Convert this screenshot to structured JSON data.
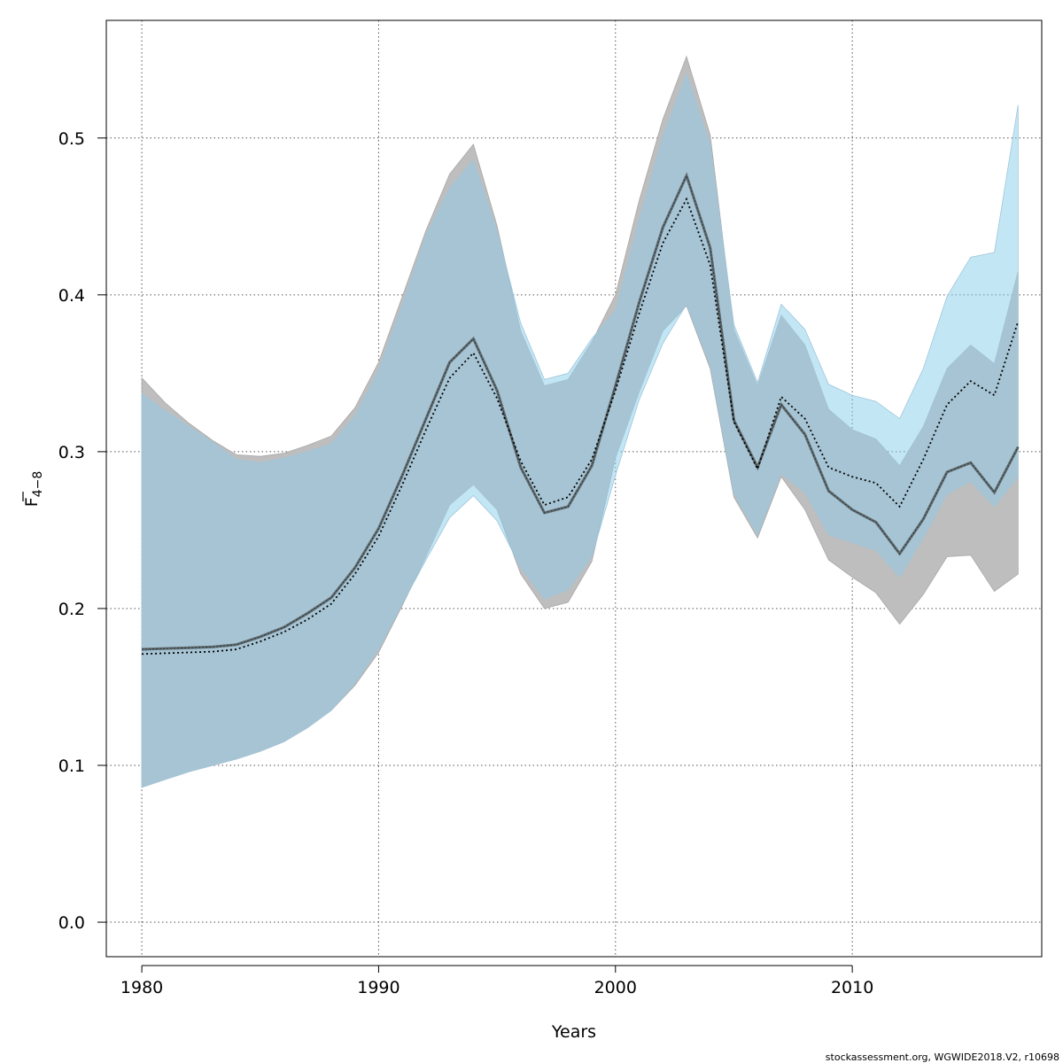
{
  "chart_data": {
    "type": "area",
    "xlabel": "Years",
    "ylabel": "F",
    "ylabel_subscript": "4−8",
    "credit": "stockassessment.org, WGWIDE2018.V2, r10698",
    "xlim": [
      1978.5,
      2018.0
    ],
    "ylim": [
      -0.022,
      0.575
    ],
    "xticks": [
      1980,
      1990,
      2000,
      2010
    ],
    "yticks": [
      0.0,
      0.1,
      0.2,
      0.3,
      0.4,
      0.5
    ],
    "ytick_labels": [
      "0.0",
      "0.1",
      "0.2",
      "0.3",
      "0.4",
      "0.5"
    ],
    "grid": true,
    "colors": {
      "grey_band": "#bebebe",
      "blue_band": "#87ceeb",
      "overlap_band": "#a6c4d4",
      "grey_line": "#5f6a6e",
      "blue_line": "#000000"
    },
    "x": [
      1980,
      1981,
      1982,
      1983,
      1984,
      1985,
      1986,
      1987,
      1988,
      1989,
      1990,
      1991,
      1992,
      1993,
      1994,
      1995,
      1996,
      1997,
      1998,
      1999,
      2000,
      2001,
      2002,
      2003,
      2004,
      2005,
      2006,
      2007,
      2008,
      2009,
      2010,
      2011,
      2012,
      2013,
      2014,
      2015,
      2016,
      2017
    ],
    "series": [
      {
        "role": "previous",
        "estimate": [
          0.174,
          0.1745,
          0.175,
          0.1755,
          0.177,
          0.182,
          0.188,
          0.197,
          0.207,
          0.226,
          0.251,
          0.285,
          0.321,
          0.357,
          0.372,
          0.339,
          0.29,
          0.261,
          0.265,
          0.291,
          0.342,
          0.395,
          0.443,
          0.476,
          0.43,
          0.32,
          0.29,
          0.33,
          0.311,
          0.275,
          0.263,
          0.255,
          0.235,
          0.257,
          0.287,
          0.293,
          0.274,
          0.303
        ],
        "lower": [
          0.086,
          0.091,
          0.096,
          0.1,
          0.104,
          0.109,
          0.115,
          0.124,
          0.135,
          0.151,
          0.172,
          0.202,
          0.233,
          0.266,
          0.279,
          0.263,
          0.222,
          0.2,
          0.204,
          0.23,
          0.296,
          0.338,
          0.377,
          0.393,
          0.353,
          0.271,
          0.245,
          0.284,
          0.263,
          0.231,
          0.22,
          0.21,
          0.19,
          0.209,
          0.233,
          0.234,
          0.211,
          0.222
        ],
        "upper": [
          0.347,
          0.331,
          0.318,
          0.307,
          0.298,
          0.297,
          0.299,
          0.304,
          0.31,
          0.328,
          0.357,
          0.399,
          0.441,
          0.477,
          0.496,
          0.444,
          0.377,
          0.342,
          0.346,
          0.37,
          0.4,
          0.46,
          0.512,
          0.552,
          0.502,
          0.378,
          0.342,
          0.387,
          0.368,
          0.327,
          0.314,
          0.308,
          0.291,
          0.316,
          0.353,
          0.368,
          0.356,
          0.415
        ]
      },
      {
        "role": "current",
        "estimate": [
          0.171,
          0.1715,
          0.172,
          0.1725,
          0.174,
          0.179,
          0.185,
          0.193,
          0.203,
          0.222,
          0.246,
          0.279,
          0.314,
          0.347,
          0.363,
          0.334,
          0.294,
          0.266,
          0.271,
          0.295,
          0.339,
          0.388,
          0.433,
          0.461,
          0.419,
          0.319,
          0.289,
          0.335,
          0.321,
          0.29,
          0.284,
          0.28,
          0.265,
          0.295,
          0.33,
          0.345,
          0.336,
          0.383
        ],
        "lower": [
          0.086,
          0.091,
          0.096,
          0.1,
          0.104,
          0.109,
          0.115,
          0.124,
          0.135,
          0.152,
          0.174,
          0.203,
          0.231,
          0.258,
          0.272,
          0.256,
          0.226,
          0.206,
          0.212,
          0.233,
          0.285,
          0.333,
          0.369,
          0.394,
          0.355,
          0.273,
          0.247,
          0.286,
          0.274,
          0.247,
          0.242,
          0.237,
          0.22,
          0.245,
          0.273,
          0.281,
          0.265,
          0.284
        ],
        "upper": [
          0.337,
          0.326,
          0.316,
          0.306,
          0.295,
          0.293,
          0.296,
          0.3,
          0.305,
          0.323,
          0.352,
          0.394,
          0.438,
          0.468,
          0.486,
          0.441,
          0.382,
          0.346,
          0.35,
          0.372,
          0.39,
          0.448,
          0.501,
          0.541,
          0.496,
          0.381,
          0.344,
          0.394,
          0.378,
          0.343,
          0.336,
          0.332,
          0.321,
          0.353,
          0.399,
          0.424,
          0.427,
          0.521
        ]
      }
    ]
  }
}
